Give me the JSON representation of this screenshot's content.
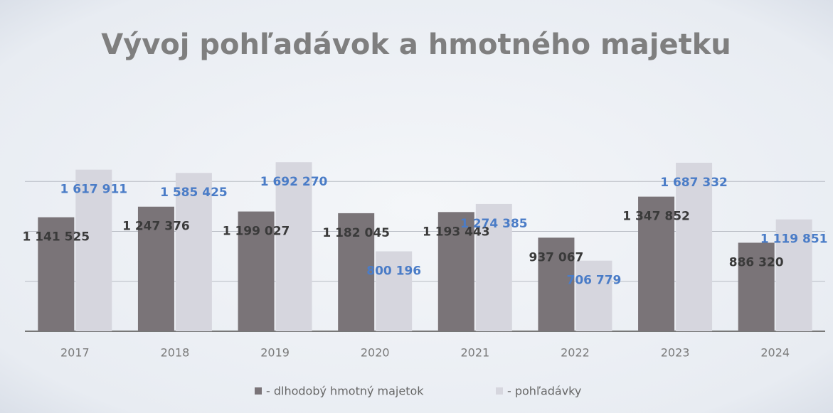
{
  "chart_data": {
    "type": "bar",
    "title": "Vývoj pohľadávok a hmotného majetku",
    "categories": [
      "2017",
      "2018",
      "2019",
      "2020",
      "2021",
      "2022",
      "2023",
      "2024"
    ],
    "series": [
      {
        "name": "- dlhodobý hmotný majetok",
        "color": "#7a7478",
        "values": [
          1141525,
          1247376,
          1199027,
          1182045,
          1193443,
          937067,
          1347852,
          886320
        ],
        "value_labels": [
          "1 141 525",
          "1 247 376",
          "1 199 027",
          "1 182 045",
          "1 193 443",
          "937 067",
          "1 347 852",
          "886 320"
        ]
      },
      {
        "name": "- pohľadávky",
        "color": "#d6d6de",
        "values": [
          1617911,
          1585425,
          1692270,
          800196,
          1274385,
          706779,
          1687332,
          1119851
        ],
        "value_labels": [
          "1 617 911",
          "1 585 425",
          "1 692 270",
          "800 196",
          "1 274 385",
          "706 779",
          "1 687 332",
          "1 119 851"
        ]
      }
    ],
    "ylim": [
      0,
      2000000
    ],
    "yticks": [
      0,
      500000,
      1000000,
      1500000
    ],
    "grid": true
  }
}
